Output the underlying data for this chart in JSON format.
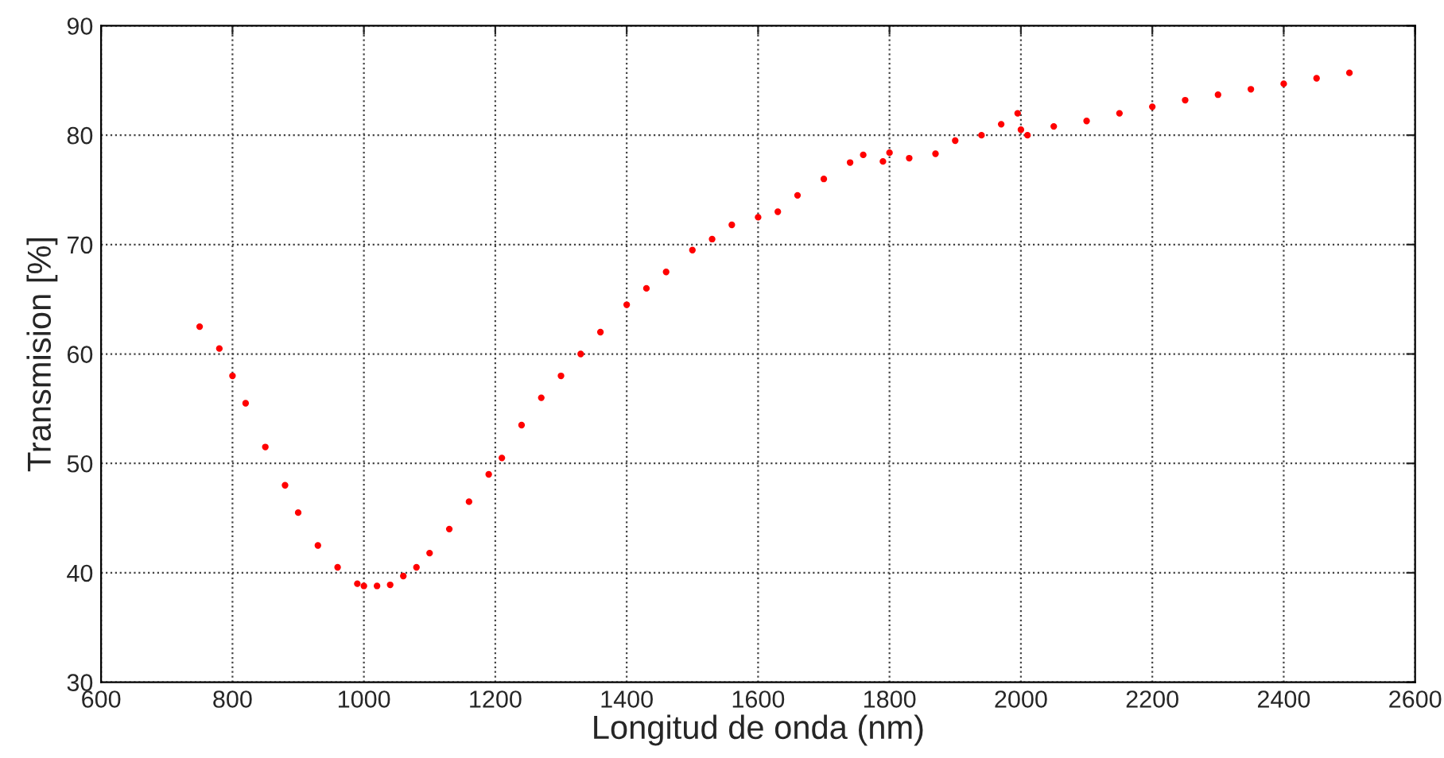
{
  "chart_data": {
    "type": "scatter",
    "xlabel": "Longitud de onda (nm)",
    "ylabel": "Transmision [%]",
    "x": [
      750,
      780,
      800,
      820,
      850,
      880,
      900,
      930,
      960,
      990,
      1000,
      1020,
      1040,
      1060,
      1080,
      1100,
      1130,
      1160,
      1190,
      1210,
      1240,
      1270,
      1300,
      1330,
      1360,
      1400,
      1430,
      1460,
      1500,
      1530,
      1560,
      1600,
      1630,
      1660,
      1700,
      1740,
      1760,
      1790,
      1800,
      1830,
      1870,
      1900,
      1940,
      1970,
      1995,
      2000,
      2010,
      2050,
      2100,
      2150,
      2200,
      2250,
      2300,
      2350,
      2400,
      2450,
      2500
    ],
    "series": [
      {
        "color": "#ff0000",
        "values": [
          62.5,
          60.5,
          58,
          55.5,
          51.5,
          48,
          45.5,
          42.5,
          40.5,
          39,
          38.8,
          38.8,
          38.9,
          39.7,
          40.5,
          41.8,
          44,
          46.5,
          49,
          50.5,
          53.5,
          56,
          58,
          60,
          62,
          64.5,
          66,
          67.5,
          69.5,
          70.5,
          71.8,
          72.5,
          73,
          74.5,
          76,
          77.5,
          78.2,
          77.6,
          78.4,
          77.9,
          78.3,
          79.5,
          80,
          81,
          82,
          80.5,
          80,
          80.8,
          81.3,
          82,
          82.6,
          83.2,
          83.7,
          84.2,
          84.7,
          85.2,
          85.7
        ]
      }
    ],
    "xlim": [
      600,
      2600
    ],
    "ylim": [
      30,
      90
    ],
    "xticks": [
      600,
      800,
      1000,
      1200,
      1400,
      1600,
      1800,
      2000,
      2200,
      2400,
      2600
    ],
    "yticks": [
      30,
      40,
      50,
      60,
      70,
      80,
      90
    ],
    "grid": true,
    "marker": "circle"
  }
}
